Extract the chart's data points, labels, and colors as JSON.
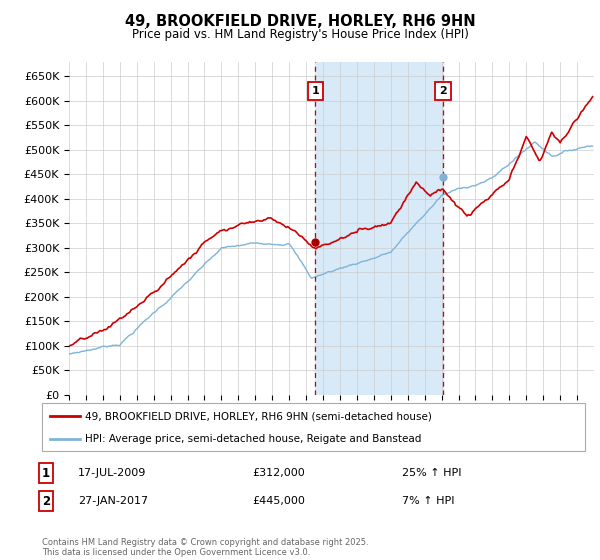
{
  "title": "49, BROOKFIELD DRIVE, HORLEY, RH6 9HN",
  "subtitle": "Price paid vs. HM Land Registry's House Price Index (HPI)",
  "ylabel_ticks": [
    "£0",
    "£50K",
    "£100K",
    "£150K",
    "£200K",
    "£250K",
    "£300K",
    "£350K",
    "£400K",
    "£450K",
    "£500K",
    "£550K",
    "£600K",
    "£650K"
  ],
  "ytick_values": [
    0,
    50000,
    100000,
    150000,
    200000,
    250000,
    300000,
    350000,
    400000,
    450000,
    500000,
    550000,
    600000,
    650000
  ],
  "ylim": [
    0,
    680000
  ],
  "x_start_year": 1995,
  "x_end_year": 2026,
  "legend_line1": "49, BROOKFIELD DRIVE, HORLEY, RH6 9HN (semi-detached house)",
  "legend_line2": "HPI: Average price, semi-detached house, Reigate and Banstead",
  "line1_color": "#cc0000",
  "line2_color": "#7fb3d8",
  "sale1_date": "17-JUL-2009",
  "sale1_price": "£312,000",
  "sale1_pct": "25% ↑ HPI",
  "sale2_date": "27-JAN-2017",
  "sale2_price": "£445,000",
  "sale2_pct": "7% ↑ HPI",
  "footer": "Contains HM Land Registry data © Crown copyright and database right 2025.\nThis data is licensed under the Open Government Licence v3.0.",
  "shade_color": "#d8eaf8",
  "vline_color": "#cc0000",
  "background_color": "#ffffff",
  "sale1_year_f": 2009.542,
  "sale1_price_v": 312000,
  "sale2_year_f": 2017.083,
  "sale2_price_v": 445000
}
